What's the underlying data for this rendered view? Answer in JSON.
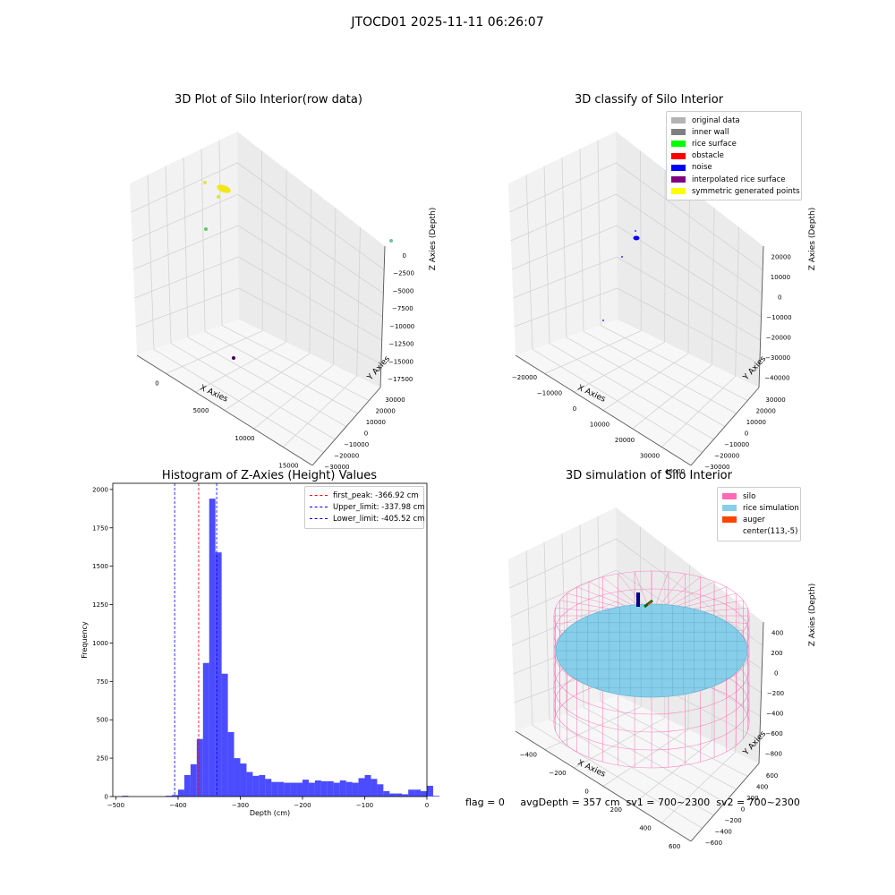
{
  "figure": {
    "suptitle": "JTOCD01 2025-11-11 06:26:07",
    "footer": {
      "flag": "flag = 0",
      "avg_depth": "avgDepth = 357 cm",
      "sv1": "sv1 = 700~2300",
      "sv2": "sv2 = 700~2300"
    }
  },
  "chart_data": [
    {
      "type": "scatter",
      "panel": "raw",
      "title": "3D Plot of Silo Interior(row data)",
      "xlabel": "X Axies",
      "ylabel": "Y Axies",
      "zlabel": "Z Axies (Depth)",
      "x_ticks": [
        "0",
        "5000",
        "10000",
        "15000"
      ],
      "y_ticks": [
        "−30000",
        "−20000",
        "−10000",
        "0",
        "10000",
        "20000",
        "30000"
      ],
      "z_ticks": [
        "0",
        "−2500",
        "−5000",
        "−7500",
        "−10000",
        "−12500",
        "−15000",
        "−17500"
      ],
      "points": [
        {
          "label": "cluster",
          "color": "#f2e61a"
        },
        {
          "label": "outlier",
          "color": "#e8e04a"
        },
        {
          "label": "outlier",
          "color": "#d6e84a"
        },
        {
          "label": "outlier",
          "color": "#5ec962"
        },
        {
          "label": "outlier",
          "color": "#6cc4a4"
        },
        {
          "label": "outlier",
          "color": "#440154"
        }
      ]
    },
    {
      "type": "scatter",
      "panel": "classified",
      "title": "3D classify of Silo Interior",
      "xlabel": "X Axies",
      "ylabel": "Y Axies",
      "zlabel": "Z Axies (Depth)",
      "x_ticks": [
        "−20000",
        "−10000",
        "0",
        "10000",
        "20000",
        "30000",
        "40000"
      ],
      "y_ticks": [
        "−30000",
        "−20000",
        "−10000",
        "0",
        "10000",
        "20000",
        "30000"
      ],
      "z_ticks": [
        "20000",
        "10000",
        "0",
        "−10000",
        "−20000",
        "−30000",
        "−40000"
      ],
      "legend": [
        {
          "name": "original data",
          "color": "#b3b3b3"
        },
        {
          "name": "inner wall",
          "color": "#808080"
        },
        {
          "name": "rice surface",
          "color": "#00ff00"
        },
        {
          "name": "obstacle",
          "color": "#ff0000"
        },
        {
          "name": "noise",
          "color": "#0000ff"
        },
        {
          "name": "interpolated rice surface",
          "color": "#800080"
        },
        {
          "name": "symmetric generated points",
          "color": "#ffff00"
        }
      ]
    },
    {
      "type": "bar",
      "panel": "histogram",
      "title": "Histogram of Z-Axies (Height) Values",
      "xlabel": "Depth (cm)",
      "ylabel": "Frequency",
      "xlim": [
        -505,
        0
      ],
      "ylim": [
        0,
        2040
      ],
      "x_ticks": [
        -500,
        -400,
        -300,
        -200,
        -100,
        0
      ],
      "y_ticks": [
        0,
        250,
        500,
        750,
        1000,
        1250,
        1500,
        1750,
        2000
      ],
      "bin_start": -490,
      "bin_width": 10,
      "color": "#0000ff",
      "values": [
        5,
        0,
        0,
        0,
        0,
        0,
        0,
        5,
        10,
        45,
        140,
        210,
        375,
        870,
        1940,
        1590,
        800,
        420,
        250,
        215,
        160,
        135,
        140,
        115,
        95,
        95,
        90,
        90,
        90,
        110,
        90,
        105,
        100,
        100,
        90,
        105,
        95,
        90,
        120,
        140,
        115,
        80,
        35,
        20,
        20,
        15,
        45,
        45,
        35,
        70,
        5
      ],
      "reference_lines": [
        {
          "name": "first_peak: -366.92 cm",
          "x": -366.92,
          "color": "#ff0000"
        },
        {
          "name": "Upper_limit: -337.98 cm",
          "x": -337.98,
          "color": "#0000ff"
        },
        {
          "name": "Lower_limit: -405.52 cm",
          "x": -405.52,
          "color": "#0000ff"
        }
      ]
    },
    {
      "type": "scatter",
      "panel": "simulation",
      "title": "3D simulation of Silo Interior",
      "xlabel": "X Axies",
      "ylabel": "Y Axies",
      "zlabel": "Z Axies (Depth)",
      "x_ticks": [
        "−400",
        "−200",
        "0",
        "200",
        "400",
        "600"
      ],
      "y_ticks": [
        "−600",
        "−400",
        "−200",
        "0",
        "200",
        "400",
        "600"
      ],
      "z_ticks": [
        "400",
        "200",
        "0",
        "−200",
        "−400",
        "−600",
        "−800"
      ],
      "legend": [
        {
          "name": "silo",
          "color": "#ff69b4"
        },
        {
          "name": "rice simulation",
          "color": "#87ceeb"
        },
        {
          "name": "auger",
          "color": "#ff4500"
        },
        {
          "name": "center(113,-5)",
          "color": "#ffffff"
        }
      ]
    }
  ]
}
